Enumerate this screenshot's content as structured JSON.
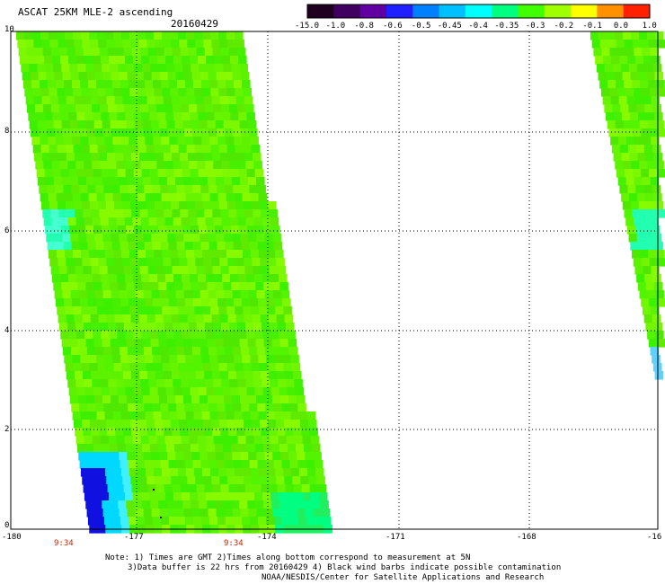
{
  "title": "ASCAT 25KM MLE-2 ascending",
  "date": "20160429",
  "colorbar": {
    "labels": [
      "-15.0",
      "-1.0",
      "-0.8",
      "-0.6",
      "-0.5",
      "-0.45",
      "-0.4",
      "-0.35",
      "-0.3",
      "-0.2",
      "-0.1",
      "0.0",
      "1.0"
    ],
    "colors": [
      "#200020",
      "#400060",
      "#6000a0",
      "#2020ff",
      "#0080ff",
      "#00c0ff",
      "#00ffff",
      "#00ff80",
      "#40ff00",
      "#a0ff00",
      "#ffff00",
      "#ff9000",
      "#ff2000"
    ]
  },
  "axes": {
    "x_ticks": [
      "-180",
      "-177",
      "-174",
      "-171",
      "-168",
      "-16"
    ],
    "y_ticks": [
      "0",
      "2",
      "4",
      "6",
      "8",
      "10"
    ]
  },
  "time_labels": [
    "9:34",
    "9:34"
  ],
  "notes": {
    "line1": "Note: 1) Times are GMT 2)Times along bottom correspond to measurement at 5N",
    "line2": "3)Data buffer is 22 hrs from 20160429 4) Black wind barbs indicate possible contamination",
    "line3": "NOAA/NESDIS/Center for Satellite Applications and Research"
  }
}
